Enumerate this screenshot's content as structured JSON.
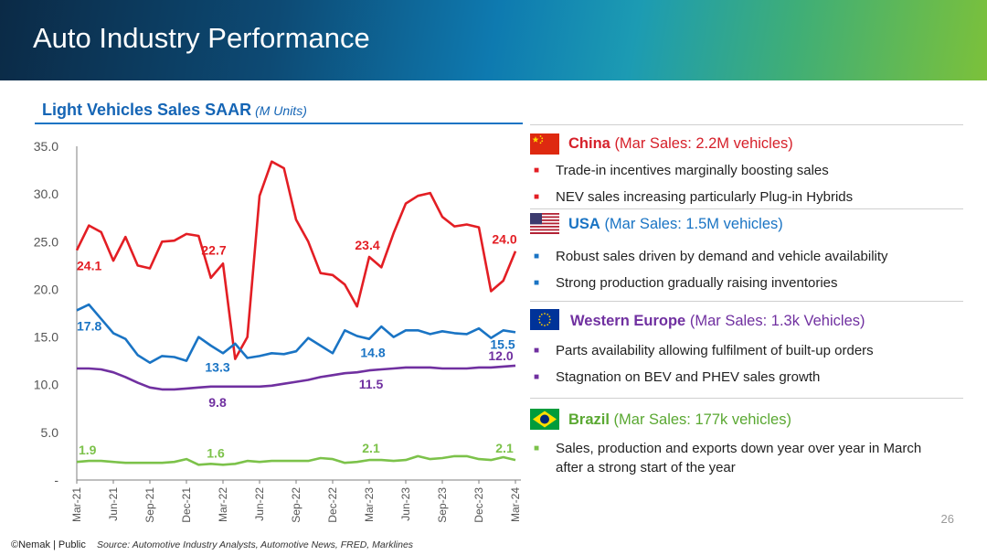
{
  "slide": {
    "title": "Auto Industry Performance",
    "page_number": "26",
    "footer_brand": "©Nemak | Public",
    "footer_source": "Source: Automotive Industry Analysts, Automotive News, FRED, Marklines"
  },
  "chart_title": "Light Vehicles Sales SAAR",
  "chart_units": "(M Units)",
  "chart_data": {
    "type": "line",
    "title": "Light Vehicles Sales SAAR (M Units)",
    "ylim": [
      0,
      35
    ],
    "yticks": [
      "-",
      "5.0",
      "10.0",
      "15.0",
      "20.0",
      "25.0",
      "30.0",
      "35.0"
    ],
    "x_tick_labels": [
      "Mar-21",
      "Jun-21",
      "Sep-21",
      "Dec-21",
      "Mar-22",
      "Jun-22",
      "Sep-22",
      "Dec-22",
      "Mar-23",
      "Jun-23",
      "Sep-23",
      "Dec-23",
      "Mar-24"
    ],
    "x": [
      "Mar-21",
      "Apr-21",
      "May-21",
      "Jun-21",
      "Jul-21",
      "Aug-21",
      "Sep-21",
      "Oct-21",
      "Nov-21",
      "Dec-21",
      "Jan-22",
      "Feb-22",
      "Mar-22",
      "Apr-22",
      "May-22",
      "Jun-22",
      "Jul-22",
      "Aug-22",
      "Sep-22",
      "Oct-22",
      "Nov-22",
      "Dec-22",
      "Jan-23",
      "Feb-23",
      "Mar-23",
      "Apr-23",
      "May-23",
      "Jun-23",
      "Jul-23",
      "Aug-23",
      "Sep-23",
      "Oct-23",
      "Nov-23",
      "Dec-23",
      "Jan-24",
      "Feb-24",
      "Mar-24"
    ],
    "grid": false,
    "series": [
      {
        "key": "china",
        "color": "#e31e24",
        "values": [
          24.1,
          26.7,
          26.0,
          23.0,
          25.5,
          22.5,
          22.2,
          25.0,
          25.1,
          25.8,
          25.6,
          21.2,
          22.7,
          12.7,
          15.0,
          29.8,
          33.4,
          32.7,
          27.3,
          25.0,
          21.7,
          21.5,
          20.5,
          18.2,
          23.4,
          22.3,
          25.9,
          29.0,
          29.8,
          30.1,
          27.6,
          26.6,
          26.8,
          26.5,
          19.8,
          20.9,
          24.0
        ]
      },
      {
        "key": "usa",
        "color": "#1a74c4",
        "values": [
          17.8,
          18.4,
          16.9,
          15.4,
          14.8,
          13.1,
          12.3,
          13.0,
          12.9,
          12.5,
          15.0,
          14.1,
          13.3,
          14.3,
          12.8,
          13.0,
          13.3,
          13.2,
          13.5,
          14.9,
          14.1,
          13.3,
          15.7,
          15.1,
          14.8,
          16.1,
          15.0,
          15.7,
          15.7,
          15.3,
          15.6,
          15.4,
          15.3,
          15.9,
          14.9,
          15.7,
          15.5
        ]
      },
      {
        "key": "western_europe",
        "color": "#7030a0",
        "values": [
          11.7,
          11.7,
          11.6,
          11.3,
          10.8,
          10.2,
          9.7,
          9.5,
          9.5,
          9.6,
          9.7,
          9.8,
          9.8,
          9.8,
          9.8,
          9.8,
          9.9,
          10.1,
          10.3,
          10.5,
          10.8,
          11.0,
          11.2,
          11.3,
          11.5,
          11.6,
          11.7,
          11.8,
          11.8,
          11.8,
          11.7,
          11.7,
          11.7,
          11.8,
          11.8,
          11.9,
          12.0
        ]
      },
      {
        "key": "brazil",
        "color": "#7cc24a",
        "values": [
          1.9,
          2.0,
          2.0,
          1.9,
          1.8,
          1.8,
          1.8,
          1.8,
          1.9,
          2.2,
          1.6,
          1.7,
          1.6,
          1.7,
          2.0,
          1.9,
          2.0,
          2.0,
          2.0,
          2.0,
          2.3,
          2.2,
          1.8,
          1.9,
          2.1,
          2.1,
          2.0,
          2.1,
          2.5,
          2.2,
          2.3,
          2.5,
          2.5,
          2.2,
          2.1,
          2.4,
          2.1
        ]
      }
    ],
    "data_labels": [
      {
        "series": "china",
        "index": 0,
        "text": "24.1"
      },
      {
        "series": "china",
        "index": 12,
        "text": "22.7"
      },
      {
        "series": "china",
        "index": 24,
        "text": "23.4"
      },
      {
        "series": "china",
        "index": 36,
        "text": "24.0"
      },
      {
        "series": "usa",
        "index": 0,
        "text": "17.8"
      },
      {
        "series": "usa",
        "index": 12,
        "text": "13.3"
      },
      {
        "series": "usa",
        "index": 24,
        "text": "14.8"
      },
      {
        "series": "usa",
        "index": 36,
        "text": "15.5"
      },
      {
        "series": "western_europe",
        "index": 12,
        "text": "9.8"
      },
      {
        "series": "western_europe",
        "index": 24,
        "text": "11.5"
      },
      {
        "series": "western_europe",
        "index": 36,
        "text": "12.0"
      },
      {
        "series": "brazil",
        "index": 0,
        "text": "1.9"
      },
      {
        "series": "brazil",
        "index": 12,
        "text": "1.6"
      },
      {
        "series": "brazil",
        "index": 24,
        "text": "2.1"
      },
      {
        "series": "brazil",
        "index": 36,
        "text": "2.1"
      }
    ]
  },
  "regions": [
    {
      "key": "china",
      "name": "China",
      "detail": "(Mar Sales: 2.2M vehicles)",
      "color": "#d6202a",
      "bullet_color": "#e31e24",
      "flag_icon": "china-flag-icon",
      "bullets": [
        "Trade-in incentives marginally boosting sales",
        "NEV sales increasing particularly Plug-in Hybrids"
      ]
    },
    {
      "key": "usa",
      "name": "USA",
      "detail": "(Mar Sales: 1.5M vehicles)",
      "color": "#1a74c4",
      "bullet_color": "#1a74c4",
      "flag_icon": "usa-flag-icon",
      "bullets": [
        "Robust sales driven by demand and vehicle availability",
        "Strong production gradually raising inventories"
      ]
    },
    {
      "key": "western_europe",
      "name": "Western Europe",
      "detail": "(Mar Sales: 1.3k Vehicles)",
      "color": "#7030a0",
      "bullet_color": "#7030a0",
      "flag_icon": "eu-flag-icon",
      "bullets": [
        "Parts availability allowing fulfilment of built-up orders",
        "Stagnation on BEV and PHEV sales growth"
      ]
    },
    {
      "key": "brazil",
      "name": "Brazil",
      "detail": "(Mar Sales: 177k vehicles)",
      "color": "#5aa832",
      "bullet_color": "#7cc24a",
      "flag_icon": "brazil-flag-icon",
      "bullets": [
        "Sales, production and exports down year over year in March after a strong start of the year"
      ]
    }
  ]
}
